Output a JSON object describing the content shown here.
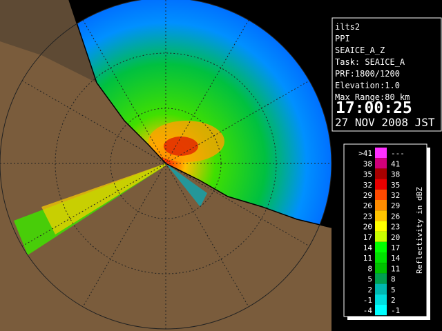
{
  "info": {
    "lines": [
      "ilts2",
      "PPI",
      "SEAICE_A_Z",
      "Task: SEAICE_A",
      "PRF:1800/1200",
      "Elevation:1.0",
      "Max Range:80 km"
    ],
    "time": "17:00:25",
    "date": "27 NOV 2008 JST"
  },
  "legend": {
    "title": "Reflectivity in dBZ",
    "rows": [
      {
        "left": ">41",
        "right": "---",
        "color": "#ff30ff"
      },
      {
        "left": "38",
        "right": "41",
        "color": "#d0007a"
      },
      {
        "left": "35",
        "right": "38",
        "color": "#a80000"
      },
      {
        "left": "32",
        "right": "35",
        "color": "#e80000"
      },
      {
        "left": "29",
        "right": "32",
        "color": "#ff4a00"
      },
      {
        "left": "26",
        "right": "29",
        "color": "#ff8c00"
      },
      {
        "left": "23",
        "right": "26",
        "color": "#ffc400"
      },
      {
        "left": "20",
        "right": "23",
        "color": "#ffff00"
      },
      {
        "left": "17",
        "right": "20",
        "color": "#c8ff00"
      },
      {
        "left": "14",
        "right": "17",
        "color": "#00ff00"
      },
      {
        "left": "11",
        "right": "14",
        "color": "#00e000"
      },
      {
        "left": "8",
        "right": "11",
        "color": "#00c000"
      },
      {
        "left": "5",
        "right": "8",
        "color": "#00a050"
      },
      {
        "left": "2",
        "right": "5",
        "color": "#00b8b0"
      },
      {
        "left": "-1",
        "right": "2",
        "color": "#00dcdc"
      },
      {
        "left": "-4",
        "right": "-1",
        "color": "#00ffff"
      }
    ]
  }
}
